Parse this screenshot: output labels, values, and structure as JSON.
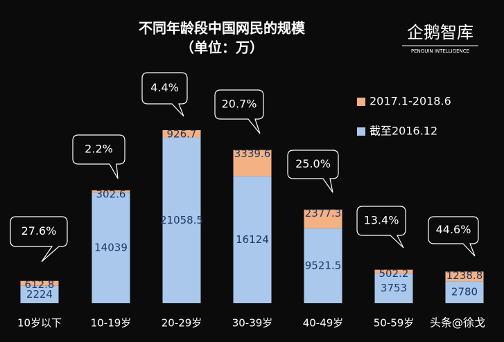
{
  "chart_data": {
    "type": "stacked-bar",
    "title": "不同年龄段中国网民的规模",
    "subtitle": "（单位：万）",
    "logo": "企鹅智库",
    "logo_subtitle": "PENGUIN INTELLIGENCE",
    "watermark": "头条@徐戈",
    "categories": [
      "10岁以下",
      "10-19岁",
      "20-29岁",
      "30-39岁",
      "40-49岁",
      "50-59岁",
      null
    ],
    "series": [
      {
        "name": "截至2016.12",
        "color": "#a9c8ec",
        "values": [
          2224,
          14039,
          21058.5,
          16124,
          9521.5,
          3753,
          2780
        ]
      },
      {
        "name": "2017.1-2018.6",
        "color": "#f4b183",
        "values": [
          612.8,
          302.6,
          926.7,
          3339.6,
          2377.3,
          502.2,
          1238.8
        ]
      }
    ],
    "callouts": [
      "27.6%",
      "2.2%",
      "4.4%",
      "20.7%",
      "25.0%",
      "13.4%",
      "44.6%"
    ]
  }
}
